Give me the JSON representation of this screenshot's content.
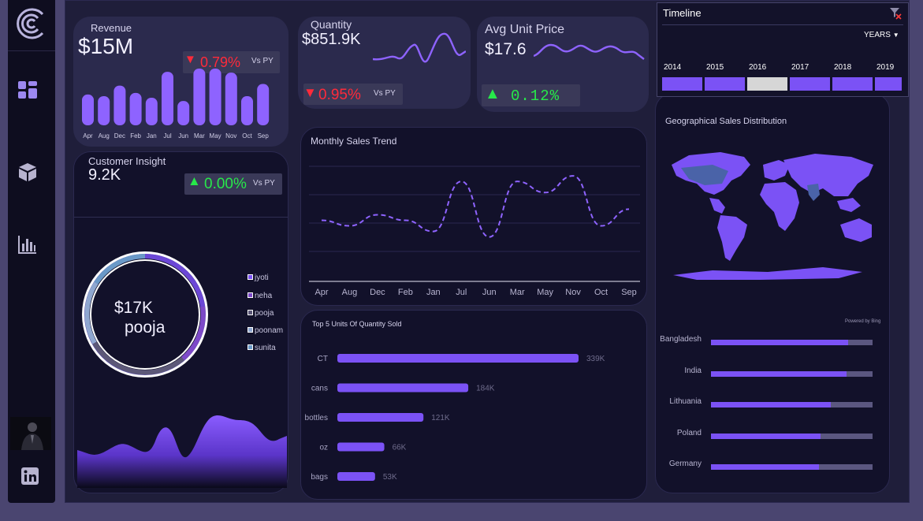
{
  "colors": {
    "accent": "#7b52f5",
    "accent_light": "#8e63ff",
    "down": "#ff2a3a",
    "up": "#27e84a",
    "panel": "#2b2a4d",
    "panel_dark": "#12112a"
  },
  "sidebar": {
    "icons": [
      "logo-icon",
      "dashboard-icon",
      "box-icon",
      "bar-chart-icon",
      "profile-photo",
      "linkedin-icon"
    ]
  },
  "revenue": {
    "title": "Revenue",
    "value": "$15M",
    "change": "0.79%",
    "vs": "Vs PY",
    "chart_data": {
      "type": "bar",
      "categories": [
        "Apr",
        "Aug",
        "Dec",
        "Feb",
        "Jan",
        "Jul",
        "Jun",
        "Mar",
        "May",
        "Nov",
        "Oct",
        "Sep"
      ],
      "values": [
        38,
        36,
        49,
        40,
        34,
        66,
        30,
        70,
        70,
        65,
        36,
        51
      ]
    }
  },
  "quantity": {
    "title": "Quantity",
    "value": "$851.9K",
    "change": "0.95%",
    "vs": "Vs PY"
  },
  "avg_price": {
    "title": "Avg Unit Price",
    "value": "$17.6",
    "change": "0.12%"
  },
  "customer": {
    "title": "Customer Insight",
    "value": "9.2K",
    "change": "0.00%",
    "vs": "Vs PY",
    "donut_value": "$17K",
    "donut_name": "pooja",
    "legend": [
      "jyoti",
      "neha",
      "pooja",
      "poonam",
      "sunita"
    ]
  },
  "monthly": {
    "title": "Monthly Sales Trend",
    "chart_data": {
      "type": "line",
      "categories": [
        "Apr",
        "Aug",
        "Dec",
        "Feb",
        "Jan",
        "Jul",
        "Jun",
        "Mar",
        "May",
        "Nov",
        "Oct",
        "Sep"
      ],
      "values": [
        55,
        50,
        60,
        55,
        45,
        90,
        40,
        90,
        80,
        95,
        50,
        65
      ],
      "ylim": [
        0,
        110
      ]
    }
  },
  "top5": {
    "title": "Top 5 Units Of  Quantity Sold",
    "chart_data": {
      "type": "bar",
      "orientation": "horizontal",
      "categories": [
        "CT",
        "cans",
        "bottles",
        "oz",
        "bags"
      ],
      "values": [
        339,
        184,
        121,
        66,
        53
      ],
      "labels": [
        "339K",
        "184K",
        "121K",
        "66K",
        "53K"
      ],
      "xlim": [
        0,
        339
      ]
    }
  },
  "timeline": {
    "title": "Timeline",
    "unit": "YEARS",
    "years": [
      "2014",
      "2015",
      "2016",
      "2017",
      "2018",
      "2019"
    ],
    "selected": "2016"
  },
  "geo": {
    "title": "Geographical Sales Distribution",
    "credit": "Powered by Bing",
    "countries": [
      "Bangladesh",
      "India",
      "Lithuania",
      "Poland",
      "Germany"
    ],
    "shares": [
      0.85,
      0.84,
      0.74,
      0.68,
      0.67
    ]
  }
}
